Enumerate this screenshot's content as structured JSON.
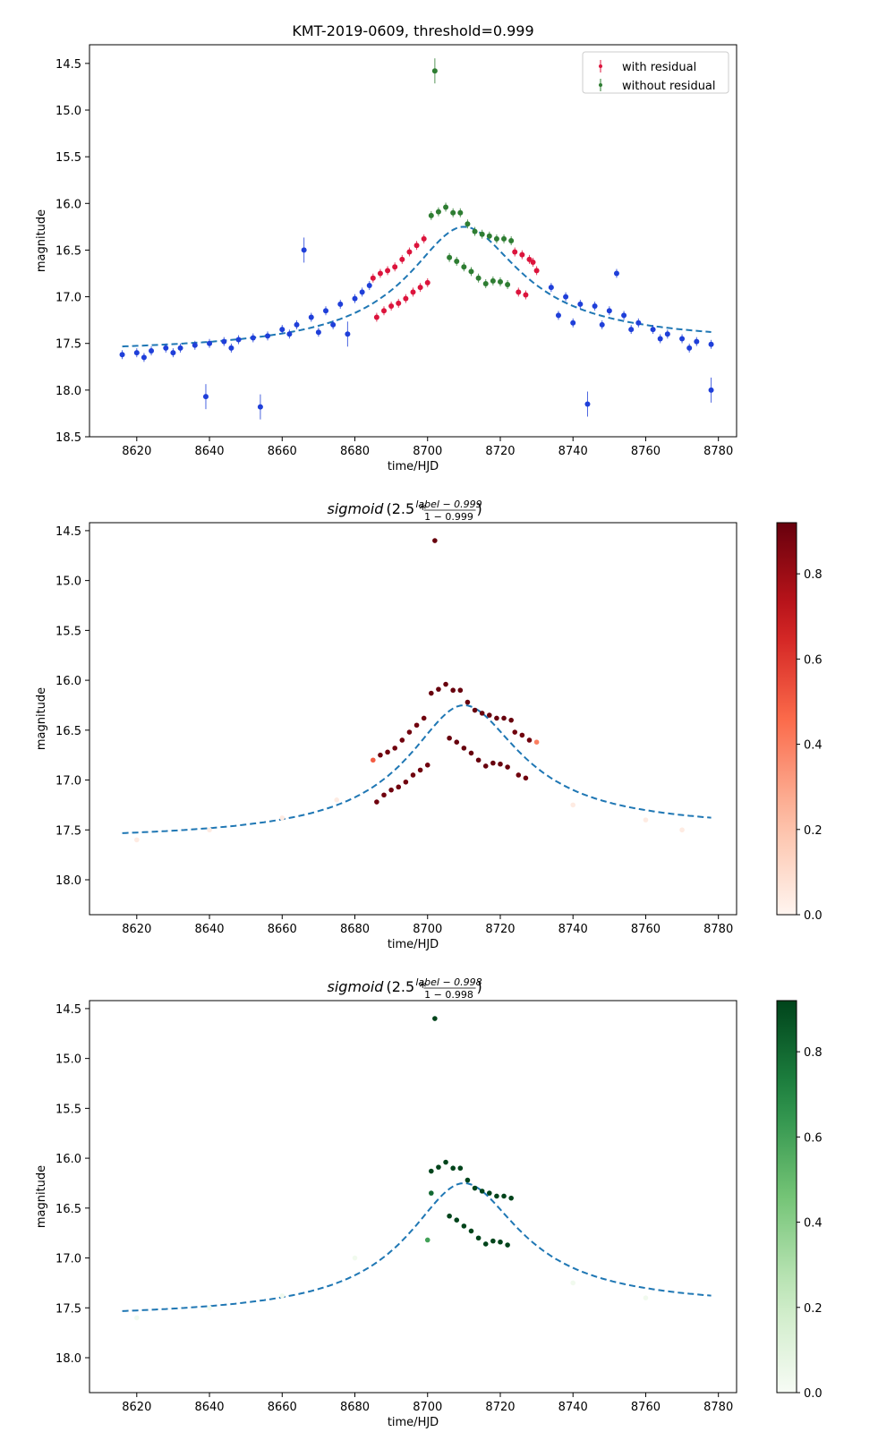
{
  "colors": {
    "with_residual": "#dc143c",
    "without_residual": "#2e7d32",
    "base_points": "#1f3fd9",
    "model_line": "#1f77b4"
  },
  "chart_data": [
    {
      "type": "scatter",
      "title": "KMT-2019-0609, threshold=0.999",
      "xlabel": "time/HJD",
      "ylabel": "magnitude",
      "xlim": [
        8607,
        8785
      ],
      "ylim": [
        18.5,
        14.3
      ],
      "y_inverted": true,
      "xticks": [
        8620,
        8640,
        8660,
        8680,
        8700,
        8720,
        8740,
        8760,
        8780
      ],
      "yticks": [
        14.5,
        15.0,
        15.5,
        16.0,
        16.5,
        17.0,
        17.5,
        18.0,
        18.5
      ],
      "legend": {
        "position": "top-right",
        "entries": [
          "with residual",
          "without residual"
        ]
      },
      "model": {
        "label": "dashed model curve",
        "t0": 8710,
        "mag_peak": 16.25,
        "tE": 21,
        "baseline_left": 17.62,
        "baseline_right": 17.51,
        "x_range": [
          8616,
          8778
        ]
      },
      "series": [
        {
          "name": "without residual",
          "color": "#2e7d32",
          "points": [
            [
              8702,
              14.58
            ],
            [
              8701,
              16.13
            ],
            [
              8703,
              16.09
            ],
            [
              8705,
              16.04
            ],
            [
              8707,
              16.1
            ],
            [
              8709,
              16.1
            ],
            [
              8711,
              16.22
            ],
            [
              8713,
              16.3
            ],
            [
              8715,
              16.33
            ],
            [
              8717,
              16.35
            ],
            [
              8719,
              16.38
            ],
            [
              8721,
              16.38
            ],
            [
              8723,
              16.4
            ],
            [
              8706,
              16.58
            ],
            [
              8708,
              16.62
            ],
            [
              8710,
              16.68
            ],
            [
              8712,
              16.73
            ],
            [
              8714,
              16.8
            ],
            [
              8716,
              16.86
            ],
            [
              8718,
              16.83
            ],
            [
              8720,
              16.84
            ],
            [
              8722,
              16.87
            ]
          ]
        },
        {
          "name": "with residual",
          "color": "#dc143c",
          "points": [
            [
              8685,
              16.8
            ],
            [
              8687,
              16.75
            ],
            [
              8689,
              16.72
            ],
            [
              8691,
              16.68
            ],
            [
              8693,
              16.6
            ],
            [
              8695,
              16.52
            ],
            [
              8697,
              16.45
            ],
            [
              8699,
              16.38
            ],
            [
              8686,
              17.22
            ],
            [
              8688,
              17.15
            ],
            [
              8690,
              17.1
            ],
            [
              8692,
              17.07
            ],
            [
              8694,
              17.02
            ],
            [
              8696,
              16.95
            ],
            [
              8698,
              16.9
            ],
            [
              8700,
              16.85
            ],
            [
              8724,
              16.52
            ],
            [
              8726,
              16.55
            ],
            [
              8728,
              16.6
            ],
            [
              8729,
              16.63
            ],
            [
              8725,
              16.95
            ],
            [
              8727,
              16.98
            ],
            [
              8730,
              16.72
            ]
          ]
        },
        {
          "name": "",
          "color": "#1f3fd9",
          "points": [
            [
              8616,
              17.62
            ],
            [
              8620,
              17.6
            ],
            [
              8624,
              17.58
            ],
            [
              8628,
              17.55
            ],
            [
              8632,
              17.55
            ],
            [
              8636,
              17.52
            ],
            [
              8639,
              18.07
            ],
            [
              8640,
              17.5
            ],
            [
              8644,
              17.48
            ],
            [
              8648,
              17.46
            ],
            [
              8652,
              17.44
            ],
            [
              8654,
              18.18
            ],
            [
              8656,
              17.42
            ],
            [
              8660,
              17.35
            ],
            [
              8664,
              17.3
            ],
            [
              8666,
              16.5
            ],
            [
              8668,
              17.22
            ],
            [
              8672,
              17.15
            ],
            [
              8676,
              17.08
            ],
            [
              8678,
              17.4
            ],
            [
              8680,
              17.02
            ],
            [
              8682,
              16.95
            ],
            [
              8684,
              16.88
            ],
            [
              8734,
              16.9
            ],
            [
              8738,
              17.0
            ],
            [
              8740,
              17.28
            ],
            [
              8742,
              17.08
            ],
            [
              8744,
              18.15
            ],
            [
              8746,
              17.1
            ],
            [
              8750,
              17.15
            ],
            [
              8752,
              16.75
            ],
            [
              8754,
              17.2
            ],
            [
              8758,
              17.28
            ],
            [
              8762,
              17.35
            ],
            [
              8766,
              17.4
            ],
            [
              8770,
              17.45
            ],
            [
              8774,
              17.48
            ],
            [
              8778,
              17.51
            ],
            [
              8778,
              18.0
            ],
            [
              8622,
              17.65
            ],
            [
              8630,
              17.6
            ],
            [
              8646,
              17.55
            ],
            [
              8662,
              17.4
            ],
            [
              8670,
              17.38
            ],
            [
              8674,
              17.3
            ],
            [
              8736,
              17.2
            ],
            [
              8748,
              17.3
            ],
            [
              8756,
              17.35
            ],
            [
              8764,
              17.45
            ],
            [
              8772,
              17.55
            ]
          ]
        }
      ]
    },
    {
      "type": "scatter",
      "title": "sigmoid(2.5 * (label − 0.999) / (1 − 0.999))",
      "title_parts": {
        "func": "sigmoid",
        "open": "(2.5 * ",
        "num": "label − 0.999",
        "den": "1 − 0.999",
        "close": ")"
      },
      "xlabel": "time/HJD",
      "ylabel": "magnitude",
      "xlim": [
        8607,
        8785
      ],
      "ylim": [
        18.35,
        14.42
      ],
      "xticks": [
        8620,
        8640,
        8660,
        8680,
        8700,
        8720,
        8740,
        8760,
        8780
      ],
      "yticks": [
        14.5,
        15.0,
        15.5,
        16.0,
        16.5,
        17.0,
        17.5,
        18.0
      ],
      "colorbar": {
        "cmap": "Reds",
        "range": [
          0,
          0.92
        ],
        "ticks": [
          0.0,
          0.2,
          0.4,
          0.6,
          0.8
        ]
      },
      "points": [
        [
          8702,
          14.6,
          0.92
        ],
        [
          8701,
          16.13,
          0.92
        ],
        [
          8703,
          16.09,
          0.92
        ],
        [
          8705,
          16.04,
          0.92
        ],
        [
          8707,
          16.1,
          0.92
        ],
        [
          8709,
          16.1,
          0.92
        ],
        [
          8711,
          16.22,
          0.92
        ],
        [
          8713,
          16.3,
          0.92
        ],
        [
          8715,
          16.33,
          0.92
        ],
        [
          8717,
          16.35,
          0.92
        ],
        [
          8719,
          16.38,
          0.92
        ],
        [
          8721,
          16.38,
          0.92
        ],
        [
          8723,
          16.4,
          0.92
        ],
        [
          8706,
          16.58,
          0.92
        ],
        [
          8708,
          16.62,
          0.92
        ],
        [
          8710,
          16.68,
          0.92
        ],
        [
          8712,
          16.73,
          0.92
        ],
        [
          8714,
          16.8,
          0.92
        ],
        [
          8716,
          16.86,
          0.92
        ],
        [
          8718,
          16.83,
          0.92
        ],
        [
          8720,
          16.84,
          0.92
        ],
        [
          8722,
          16.87,
          0.92
        ],
        [
          8685,
          16.8,
          0.5
        ],
        [
          8687,
          16.75,
          0.9
        ],
        [
          8689,
          16.72,
          0.9
        ],
        [
          8691,
          16.68,
          0.9
        ],
        [
          8693,
          16.6,
          0.9
        ],
        [
          8695,
          16.52,
          0.9
        ],
        [
          8697,
          16.45,
          0.9
        ],
        [
          8699,
          16.38,
          0.9
        ],
        [
          8686,
          17.22,
          0.9
        ],
        [
          8688,
          17.15,
          0.9
        ],
        [
          8690,
          17.1,
          0.9
        ],
        [
          8692,
          17.07,
          0.9
        ],
        [
          8694,
          17.02,
          0.9
        ],
        [
          8696,
          16.95,
          0.9
        ],
        [
          8698,
          16.9,
          0.9
        ],
        [
          8700,
          16.85,
          0.9
        ],
        [
          8724,
          16.52,
          0.9
        ],
        [
          8726,
          16.55,
          0.9
        ],
        [
          8728,
          16.6,
          0.9
        ],
        [
          8730,
          16.62,
          0.4
        ],
        [
          8725,
          16.95,
          0.9
        ],
        [
          8727,
          16.98,
          0.9
        ],
        [
          8620,
          17.6,
          0.04
        ],
        [
          8640,
          17.5,
          0.04
        ],
        [
          8660,
          17.38,
          0.04
        ],
        [
          8675,
          17.2,
          0.04
        ],
        [
          8740,
          17.25,
          0.04
        ],
        [
          8760,
          17.4,
          0.04
        ],
        [
          8770,
          17.5,
          0.04
        ]
      ]
    },
    {
      "type": "scatter",
      "title": "sigmoid(2.5 * (label − 0.998) / (1 − 0.998))",
      "title_parts": {
        "func": "sigmoid",
        "open": "(2.5 * ",
        "num": "label − 0.998",
        "den": "1 − 0.998",
        "close": ")"
      },
      "xlabel": "time/HJD",
      "ylabel": "magnitude",
      "xlim": [
        8607,
        8785
      ],
      "ylim": [
        18.35,
        14.42
      ],
      "xticks": [
        8620,
        8640,
        8660,
        8680,
        8700,
        8720,
        8740,
        8760,
        8780
      ],
      "yticks": [
        14.5,
        15.0,
        15.5,
        16.0,
        16.5,
        17.0,
        17.5,
        18.0
      ],
      "colorbar": {
        "cmap": "Greens",
        "range": [
          0,
          0.92
        ],
        "ticks": [
          0.0,
          0.2,
          0.4,
          0.6,
          0.8
        ]
      },
      "points": [
        [
          8702,
          14.6,
          0.92
        ],
        [
          8701,
          16.13,
          0.92
        ],
        [
          8703,
          16.09,
          0.92
        ],
        [
          8705,
          16.04,
          0.92
        ],
        [
          8707,
          16.1,
          0.92
        ],
        [
          8709,
          16.1,
          0.92
        ],
        [
          8711,
          16.22,
          0.92
        ],
        [
          8713,
          16.3,
          0.92
        ],
        [
          8715,
          16.33,
          0.92
        ],
        [
          8717,
          16.35,
          0.92
        ],
        [
          8719,
          16.38,
          0.92
        ],
        [
          8721,
          16.38,
          0.92
        ],
        [
          8723,
          16.4,
          0.92
        ],
        [
          8706,
          16.58,
          0.92
        ],
        [
          8708,
          16.62,
          0.92
        ],
        [
          8710,
          16.68,
          0.92
        ],
        [
          8712,
          16.73,
          0.92
        ],
        [
          8714,
          16.8,
          0.92
        ],
        [
          8716,
          16.86,
          0.92
        ],
        [
          8718,
          16.83,
          0.92
        ],
        [
          8720,
          16.84,
          0.92
        ],
        [
          8722,
          16.87,
          0.92
        ],
        [
          8700,
          16.82,
          0.6
        ],
        [
          8701,
          16.35,
          0.8
        ],
        [
          8620,
          17.6,
          0.03
        ],
        [
          8640,
          17.5,
          0.03
        ],
        [
          8660,
          17.38,
          0.03
        ],
        [
          8680,
          17.0,
          0.03
        ],
        [
          8740,
          17.25,
          0.03
        ],
        [
          8760,
          17.4,
          0.03
        ]
      ]
    }
  ]
}
